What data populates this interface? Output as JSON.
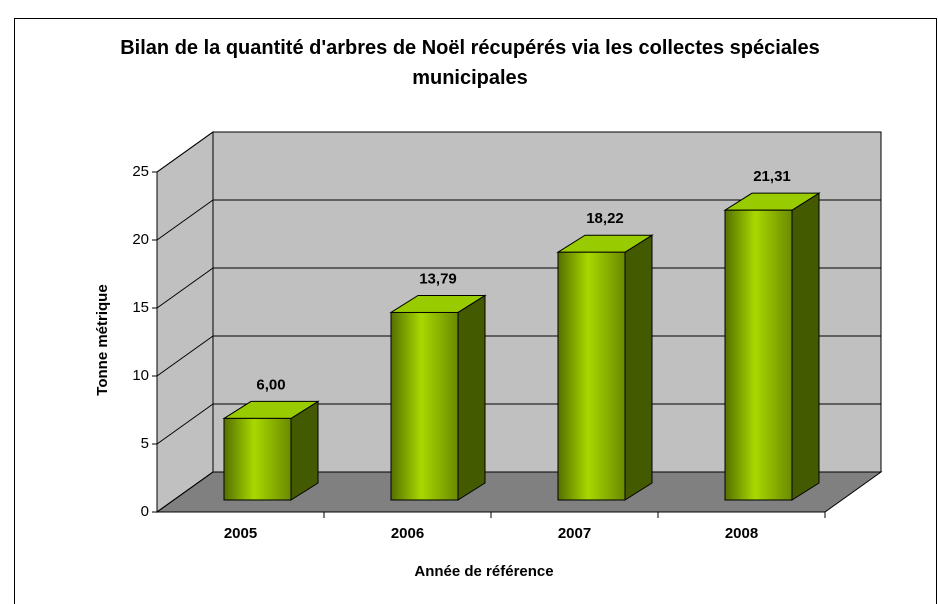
{
  "chart_data": {
    "type": "bar3d",
    "title": "Bilan de la quantité d'arbres de Noël récupérés via les collectes spéciales municipales",
    "x_label": "Année de référence",
    "y_label": "Tonne métrique",
    "categories": [
      "2005",
      "2006",
      "2007",
      "2008"
    ],
    "values": [
      6.0,
      13.79,
      18.22,
      21.31
    ],
    "value_labels": [
      "6,00",
      "13,79",
      "18,22",
      "21,31"
    ],
    "color": "#99cc00",
    "ylim": [
      0,
      25
    ],
    "yticks": [
      0,
      5,
      10,
      15,
      20,
      25
    ],
    "grid": true
  }
}
